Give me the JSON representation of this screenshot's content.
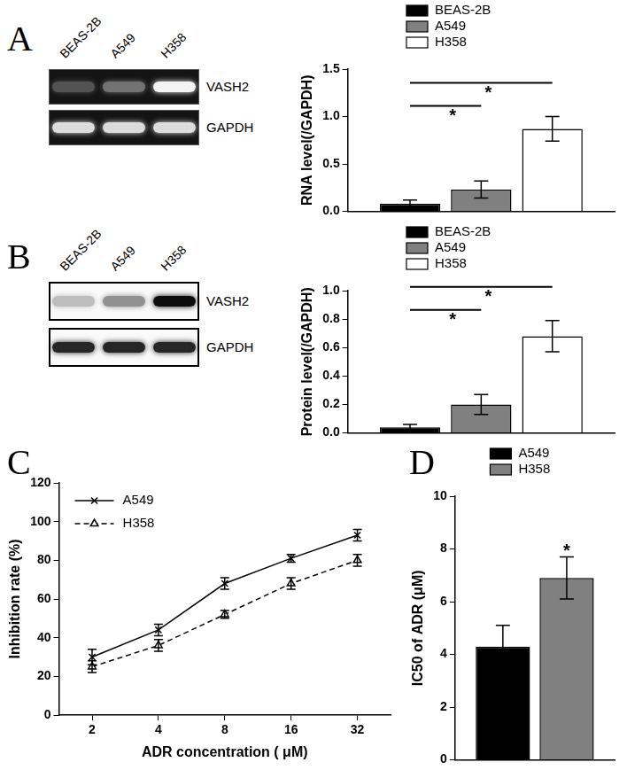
{
  "panels": [
    {
      "label": "A",
      "blot": {
        "lanes": [
          "BEAS-2B",
          "A549",
          "H358"
        ],
        "rows": [
          "VASH2",
          "GAPDH"
        ]
      }
    },
    {
      "label": "B",
      "blot": {
        "lanes": [
          "BEAS-2B",
          "A549",
          "H358"
        ],
        "rows": [
          "VASH2",
          "GAPDH"
        ]
      }
    },
    {
      "label": "C"
    },
    {
      "label": "D"
    }
  ],
  "chart_data": [
    {
      "type": "bar",
      "ylabel": "RNA level(/GAPDH)",
      "categories": [
        null
      ],
      "series": [
        {
          "name": "BEAS-2B",
          "color": "#000000",
          "values": [
            0.08
          ],
          "errors": [
            0.04
          ]
        },
        {
          "name": "A549",
          "color": "#808080",
          "values": [
            0.23
          ],
          "errors": [
            0.09
          ]
        },
        {
          "name": "H358",
          "color": "#ffffff",
          "values": [
            0.87
          ],
          "errors": [
            0.13
          ]
        }
      ],
      "ylim": [
        0,
        1.5
      ],
      "yticks": [
        {
          "value": 0,
          "label": "0.0"
        },
        {
          "value": 0.5,
          "label": "0.5"
        },
        {
          "value": 1,
          "label": "1.0"
        },
        {
          "value": 1.5,
          "label": "1.5"
        }
      ],
      "grid": false,
      "legend": "top",
      "annotations": [
        {
          "from": "BEAS-2B",
          "to": "H358",
          "label": "*"
        },
        {
          "from": "BEAS-2B",
          "to": "A549",
          "label": "*"
        }
      ]
    },
    {
      "type": "bar",
      "ylabel": "Protein level(/GAPDH)",
      "categories": [
        null
      ],
      "series": [
        {
          "name": "BEAS-2B",
          "color": "#000000",
          "values": [
            0.04
          ],
          "errors": [
            0.02
          ]
        },
        {
          "name": "A549",
          "color": "#808080",
          "values": [
            0.2
          ],
          "errors": [
            0.07
          ]
        },
        {
          "name": "H358",
          "color": "#ffffff",
          "values": [
            0.68
          ],
          "errors": [
            0.11
          ]
        }
      ],
      "ylim": [
        0,
        1
      ],
      "yticks": [
        {
          "value": 0,
          "label": "0.0"
        },
        {
          "value": 0.2,
          "label": "0.2"
        },
        {
          "value": 0.4,
          "label": "0.4"
        },
        {
          "value": 0.6,
          "label": "0.6"
        },
        {
          "value": 0.8,
          "label": "0.8"
        },
        {
          "value": 1,
          "label": "1.0"
        }
      ],
      "grid": false,
      "legend": "top",
      "annotations": [
        {
          "from": "BEAS-2B",
          "to": "H358",
          "label": "*"
        },
        {
          "from": "BEAS-2B",
          "to": "A549",
          "label": "*"
        }
      ]
    },
    {
      "type": "line",
      "xlabel": "ADR concentration ( μM)",
      "ylabel": "Inhibition rate (%)",
      "categories": [
        2,
        4,
        8,
        16,
        32
      ],
      "series": [
        {
          "name": "A549",
          "color": "#000000",
          "marker": "cross",
          "line_style": "solid",
          "values": [
            30,
            44,
            68,
            81,
            93
          ],
          "errors": [
            4,
            3,
            3,
            2,
            3
          ]
        },
        {
          "name": "H358",
          "color": "#000000",
          "marker": "triangle",
          "line_style": "dashed",
          "values": [
            25,
            36,
            52,
            68,
            80
          ],
          "errors": [
            3,
            3,
            2,
            3,
            3
          ]
        }
      ],
      "ylim": [
        0,
        120
      ],
      "yticks": [
        0,
        20,
        40,
        60,
        80,
        100,
        120
      ],
      "grid": false,
      "legend": "upper left"
    },
    {
      "type": "bar",
      "ylabel": "IC50 of ADR (μM)",
      "categories": [
        null
      ],
      "series": [
        {
          "name": "A549",
          "color": "#000000",
          "values": [
            4.3
          ],
          "errors": [
            0.8
          ]
        },
        {
          "name": "H358",
          "color": "#808080",
          "values": [
            6.9
          ],
          "errors": [
            0.8
          ]
        }
      ],
      "ylim": [
        0,
        10
      ],
      "yticks": [
        0,
        2,
        4,
        6,
        8,
        10
      ],
      "grid": false,
      "legend": "top",
      "annotations": [
        {
          "at": "H358",
          "label": "*"
        }
      ]
    }
  ]
}
